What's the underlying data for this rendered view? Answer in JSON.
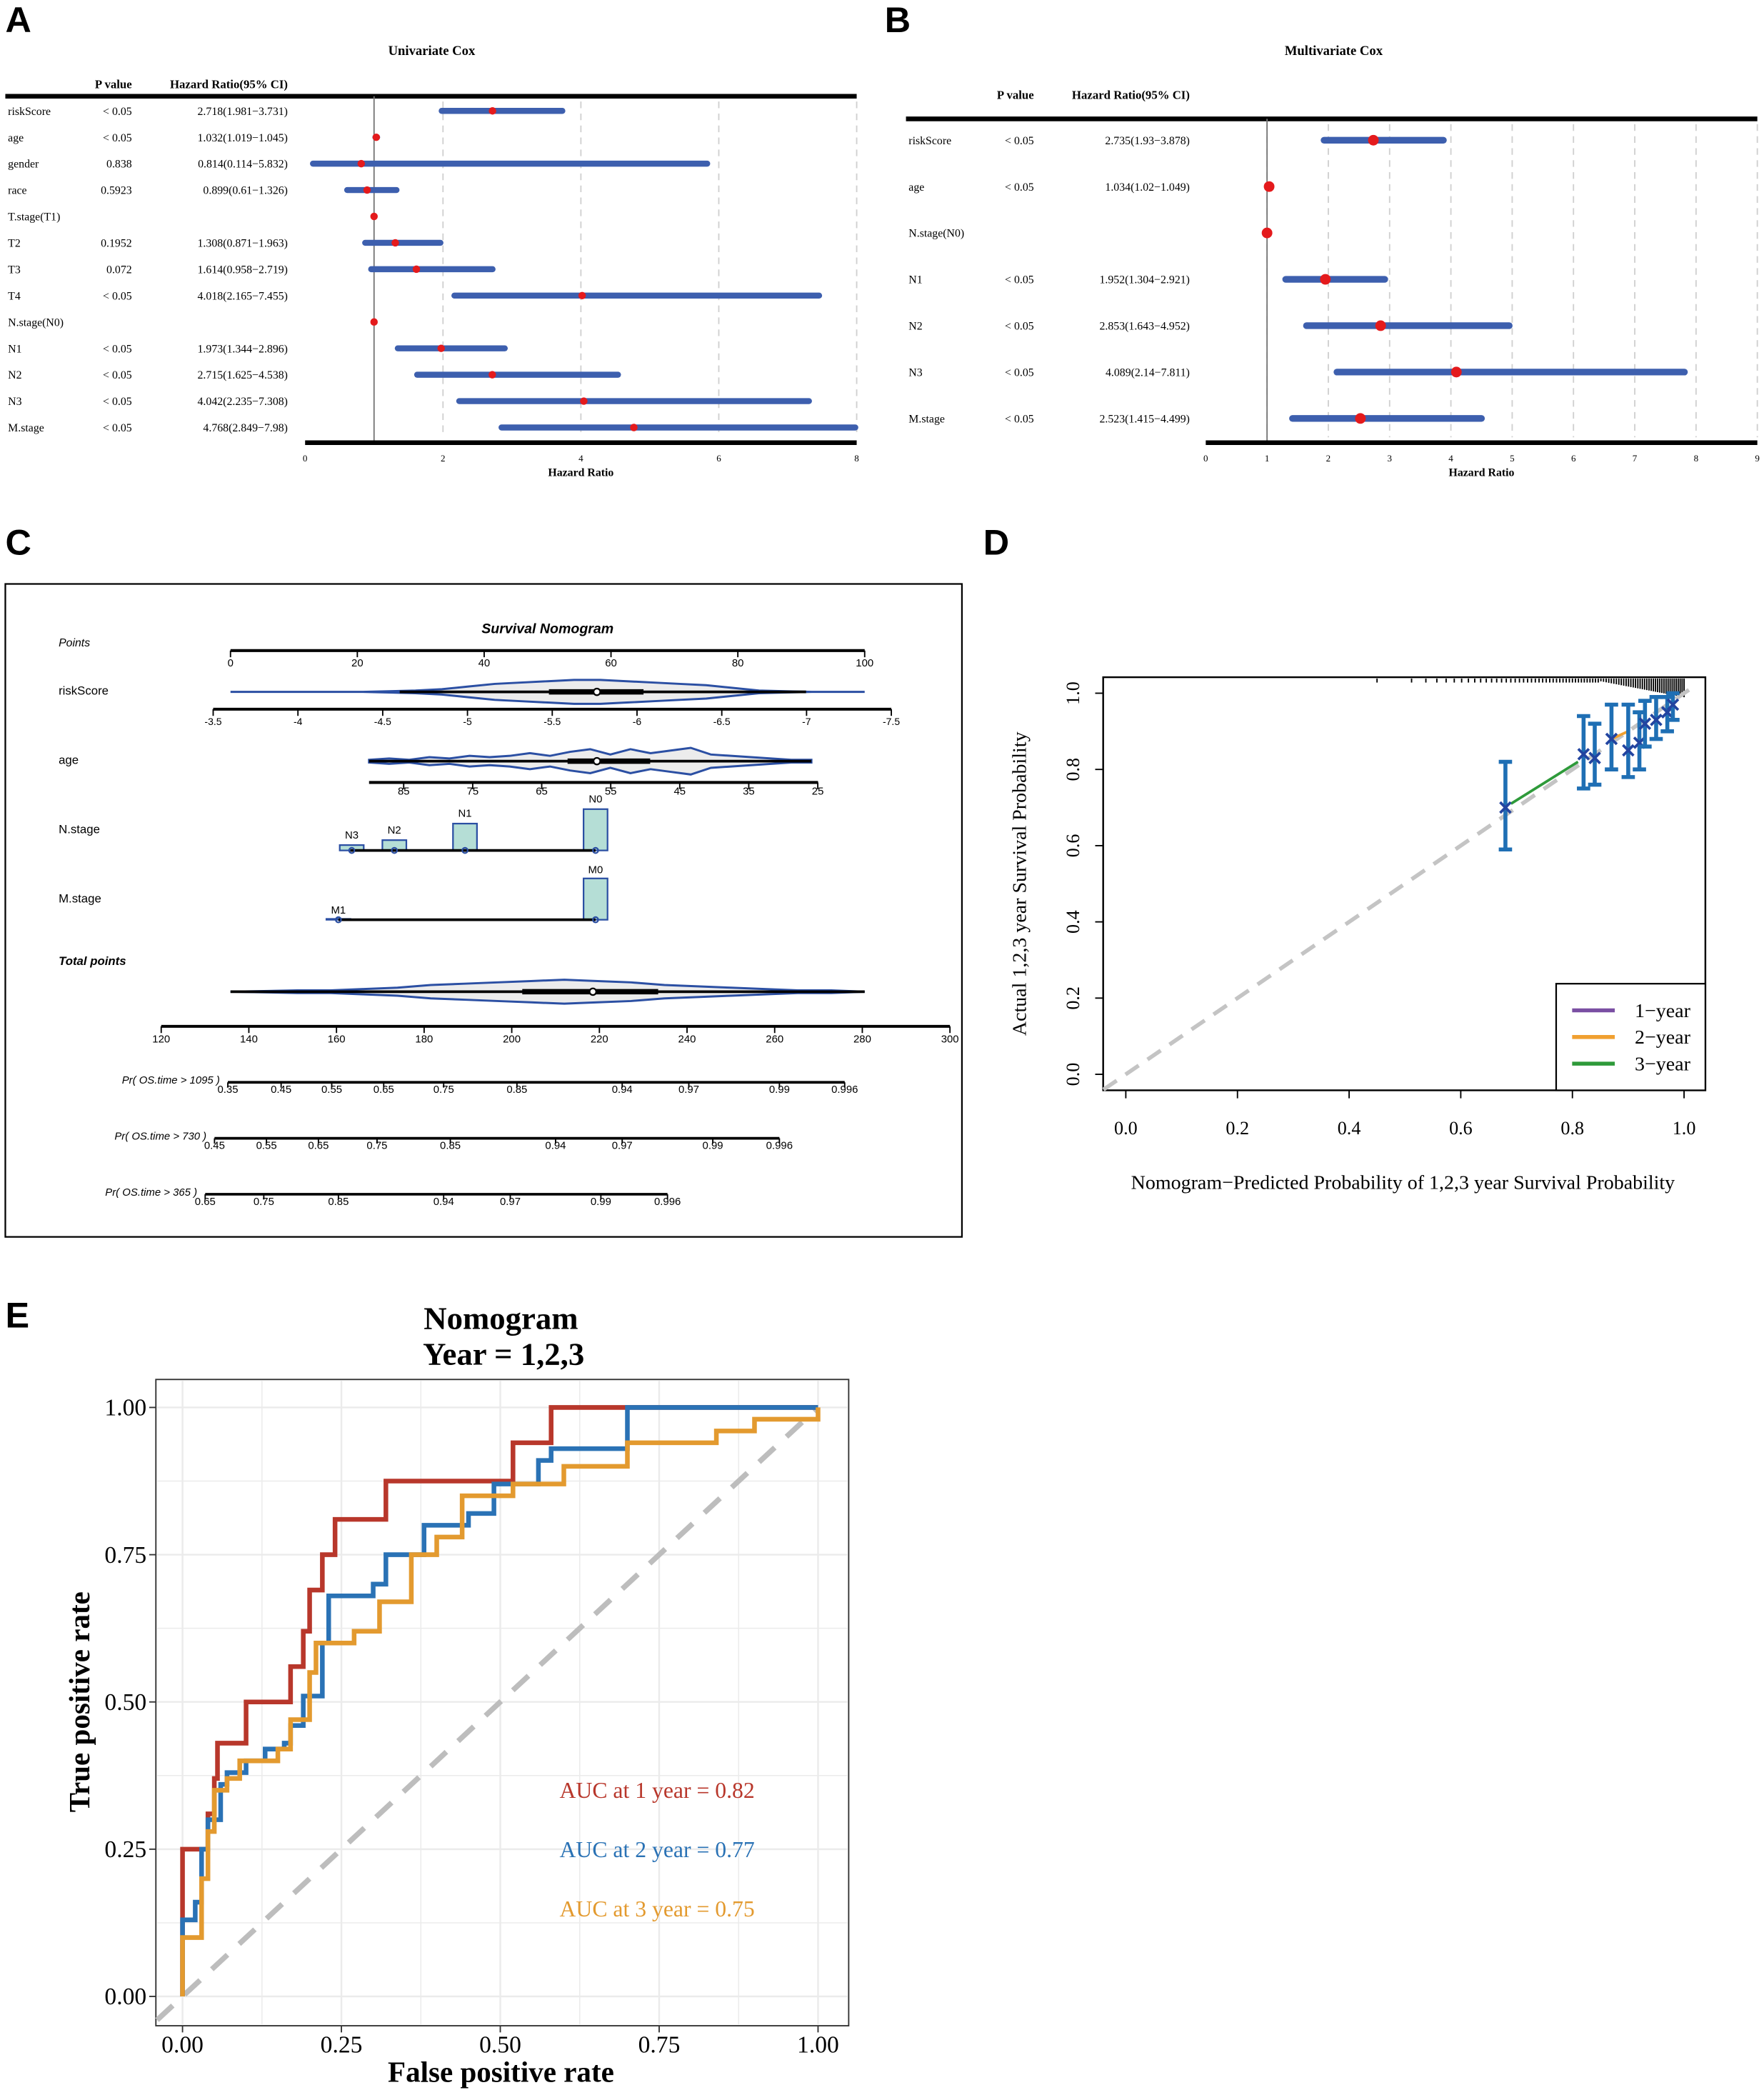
{
  "panel_labels": [
    "A",
    "B",
    "C",
    "D",
    "E"
  ],
  "chart_data": [
    {
      "type": "forest",
      "title": "Univariate Cox",
      "xlabel": "Hazard Ratio",
      "header": {
        "pvalue": "P value",
        "hr": "Hazard Ratio(95% CI)"
      },
      "xlim": [
        0,
        8
      ],
      "xticks": [
        0,
        2,
        4,
        6,
        8
      ],
      "ref": 1,
      "rows": [
        {
          "label": "riskScore",
          "p": "< 0.05",
          "hr_text": "2.718(1.981−3.731)",
          "hr": 2.718,
          "lo": 1.981,
          "hi": 3.731
        },
        {
          "label": "age",
          "p": "< 0.05",
          "hr_text": "1.032(1.019−1.045)",
          "hr": 1.032,
          "lo": 1.019,
          "hi": 1.045
        },
        {
          "label": "gender",
          "p": "0.838",
          "hr_text": "0.814(0.114−5.832)",
          "hr": 0.814,
          "lo": 0.114,
          "hi": 5.832
        },
        {
          "label": "race",
          "p": "0.5923",
          "hr_text": "0.899(0.61−1.326)",
          "hr": 0.899,
          "lo": 0.61,
          "hi": 1.326
        },
        {
          "label": "T.stage(T1)",
          "p": "",
          "hr_text": "",
          "hr": 1,
          "lo": null,
          "hi": null
        },
        {
          "label": "T2",
          "p": "0.1952",
          "hr_text": "1.308(0.871−1.963)",
          "hr": 1.308,
          "lo": 0.871,
          "hi": 1.963
        },
        {
          "label": "T3",
          "p": "0.072",
          "hr_text": "1.614(0.958−2.719)",
          "hr": 1.614,
          "lo": 0.958,
          "hi": 2.719
        },
        {
          "label": "T4",
          "p": "< 0.05",
          "hr_text": "4.018(2.165−7.455)",
          "hr": 4.018,
          "lo": 2.165,
          "hi": 7.455
        },
        {
          "label": "N.stage(N0)",
          "p": "",
          "hr_text": "",
          "hr": 1,
          "lo": null,
          "hi": null
        },
        {
          "label": "N1",
          "p": "< 0.05",
          "hr_text": "1.973(1.344−2.896)",
          "hr": 1.973,
          "lo": 1.344,
          "hi": 2.896
        },
        {
          "label": "N2",
          "p": "< 0.05",
          "hr_text": "2.715(1.625−4.538)",
          "hr": 2.715,
          "lo": 1.625,
          "hi": 4.538
        },
        {
          "label": "N3",
          "p": "< 0.05",
          "hr_text": "4.042(2.235−7.308)",
          "hr": 4.042,
          "lo": 2.235,
          "hi": 7.308
        },
        {
          "label": "M.stage",
          "p": "< 0.05",
          "hr_text": "4.768(2.849−7.98)",
          "hr": 4.768,
          "lo": 2.849,
          "hi": 7.98
        }
      ]
    },
    {
      "type": "forest",
      "title": "Multivariate Cox",
      "xlabel": "Hazard Ratio",
      "header": {
        "pvalue": "P value",
        "hr": "Hazard Ratio(95% CI)"
      },
      "xlim": [
        0,
        9
      ],
      "xticks": [
        0,
        1,
        2,
        3,
        4,
        5,
        6,
        7,
        8,
        9
      ],
      "ref": 1,
      "rows": [
        {
          "label": "riskScore",
          "p": "< 0.05",
          "hr_text": "2.735(1.93−3.878)",
          "hr": 2.735,
          "lo": 1.93,
          "hi": 3.878
        },
        {
          "label": "age",
          "p": "< 0.05",
          "hr_text": "1.034(1.02−1.049)",
          "hr": 1.034,
          "lo": 1.02,
          "hi": 1.049
        },
        {
          "label": "N.stage(N0)",
          "p": "",
          "hr_text": "",
          "hr": 1,
          "lo": null,
          "hi": null
        },
        {
          "label": "N1",
          "p": "< 0.05",
          "hr_text": "1.952(1.304−2.921)",
          "hr": 1.952,
          "lo": 1.304,
          "hi": 2.921
        },
        {
          "label": "N2",
          "p": "< 0.05",
          "hr_text": "2.853(1.643−4.952)",
          "hr": 2.853,
          "lo": 1.643,
          "hi": 4.952
        },
        {
          "label": "N3",
          "p": "< 0.05",
          "hr_text": "4.089(2.14−7.811)",
          "hr": 4.089,
          "lo": 2.14,
          "hi": 7.811
        },
        {
          "label": "M.stage",
          "p": "< 0.05",
          "hr_text": "2.523(1.415−4.499)",
          "hr": 2.523,
          "lo": 1.415,
          "hi": 4.499
        }
      ]
    },
    {
      "type": "nomogram",
      "title": "Survival Nomogram",
      "points": {
        "label": "Points",
        "ticks": [
          0,
          20,
          40,
          60,
          80,
          100
        ]
      },
      "riskScore": {
        "label": "riskScore",
        "ticks": [
          "-3.5",
          "-4",
          "-4.5",
          "-5",
          "-5.5",
          "-6",
          "-6.5",
          "-7",
          "-7.5"
        ]
      },
      "age": {
        "label": "age",
        "ticks": [
          "85",
          "75",
          "65",
          "55",
          "45",
          "35",
          "25"
        ]
      },
      "n_stage": {
        "label": "N.stage",
        "levels": [
          "N3",
          "N2",
          "N1",
          "N0"
        ],
        "freq": [
          0.13,
          0.25,
          0.65,
          1.0
        ]
      },
      "m_stage": {
        "label": "M.stage",
        "levels": [
          "M1",
          "M0"
        ],
        "freq": [
          0.02,
          1.0
        ]
      },
      "total": {
        "label": "Total points",
        "ticks": [
          120,
          140,
          160,
          180,
          200,
          220,
          240,
          260,
          280,
          300
        ]
      },
      "probs": [
        {
          "label": "Pr( OS.time > 1095 )",
          "ticks": [
            "0.35",
            "0.45",
            "0.55",
            "0.65",
            "0.75",
            "0.85",
            "0.94",
            "0.97",
            "0.99",
            "0.996"
          ]
        },
        {
          "label": "Pr( OS.time > 730 )",
          "ticks": [
            "0.45",
            "0.55",
            "0.65",
            "0.75",
            "0.85",
            "0.94",
            "0.97",
            "0.99",
            "0.996"
          ]
        },
        {
          "label": "Pr( OS.time > 365 )",
          "ticks": [
            "0.65",
            "0.75",
            "0.85",
            "0.94",
            "0.97",
            "0.99",
            "0.996"
          ]
        }
      ]
    },
    {
      "type": "scatter",
      "xlabel": "Nomogram−Predicted Probability of 1,2,3 year Survival Probability",
      "ylabel": "Actual 1,2,3 year Survival Probability",
      "xlim": [
        0,
        1
      ],
      "ylim": [
        0,
        1
      ],
      "ticks": [
        "0.0",
        "0.2",
        "0.4",
        "0.6",
        "0.8",
        "1.0"
      ],
      "legend": [
        {
          "name": "1−year",
          "color": "#7a4fa3"
        },
        {
          "name": "2−year",
          "color": "#f0a030"
        },
        {
          "name": "3−year",
          "color": "#2e9a3a"
        }
      ],
      "legend_position": "bottom-right",
      "points": [
        {
          "x": 0.68,
          "y": 0.7,
          "lo": 0.59,
          "hi": 0.82
        },
        {
          "x": 0.82,
          "y": 0.84,
          "lo": 0.75,
          "hi": 0.94
        },
        {
          "x": 0.84,
          "y": 0.83,
          "lo": 0.76,
          "hi": 0.92
        },
        {
          "x": 0.87,
          "y": 0.88,
          "lo": 0.8,
          "hi": 0.97
        },
        {
          "x": 0.9,
          "y": 0.85,
          "lo": 0.78,
          "hi": 0.97
        },
        {
          "x": 0.92,
          "y": 0.87,
          "lo": 0.8,
          "hi": 0.95
        },
        {
          "x": 0.93,
          "y": 0.92,
          "lo": 0.86,
          "hi": 0.98
        },
        {
          "x": 0.95,
          "y": 0.93,
          "lo": 0.88,
          "hi": 0.99
        },
        {
          "x": 0.97,
          "y": 0.95,
          "lo": 0.9,
          "hi": 0.99
        },
        {
          "x": 0.98,
          "y": 0.97,
          "lo": 0.93,
          "hi": 1.0
        }
      ]
    },
    {
      "type": "line",
      "title": "Nomogram",
      "subtitle": "Year = 1,2,3",
      "xlabel": "False positive rate",
      "ylabel": "True positive rate",
      "xlim": [
        0,
        1
      ],
      "ylim": [
        0,
        1
      ],
      "ticks": [
        "0.00",
        "0.25",
        "0.50",
        "0.75",
        "1.00"
      ],
      "grid": true,
      "series": [
        {
          "name": "1 year",
          "auc_label": "AUC at 1 year = 0.82",
          "auc": 0.82,
          "color": "#b8372b",
          "points": [
            [
              0,
              0
            ],
            [
              0,
              0.25
            ],
            [
              0.04,
              0.25
            ],
            [
              0.04,
              0.31
            ],
            [
              0.05,
              0.31
            ],
            [
              0.05,
              0.37
            ],
            [
              0.055,
              0.43
            ],
            [
              0.1,
              0.43
            ],
            [
              0.1,
              0.5
            ],
            [
              0.17,
              0.5
            ],
            [
              0.17,
              0.56
            ],
            [
              0.19,
              0.56
            ],
            [
              0.19,
              0.62
            ],
            [
              0.2,
              0.69
            ],
            [
              0.22,
              0.69
            ],
            [
              0.22,
              0.75
            ],
            [
              0.24,
              0.75
            ],
            [
              0.24,
              0.81
            ],
            [
              0.32,
              0.81
            ],
            [
              0.32,
              0.875
            ],
            [
              0.52,
              0.875
            ],
            [
              0.52,
              0.94
            ],
            [
              0.58,
              0.94
            ],
            [
              0.58,
              1
            ],
            [
              1,
              1
            ]
          ]
        },
        {
          "name": "2 year",
          "auc_label": "AUC at 2 year = 0.77",
          "auc": 0.77,
          "color": "#2a72b5",
          "points": [
            [
              0,
              0
            ],
            [
              0,
              0.13
            ],
            [
              0.02,
              0.13
            ],
            [
              0.02,
              0.16
            ],
            [
              0.03,
              0.16
            ],
            [
              0.03,
              0.25
            ],
            [
              0.04,
              0.3
            ],
            [
              0.06,
              0.36
            ],
            [
              0.07,
              0.38
            ],
            [
              0.1,
              0.4
            ],
            [
              0.13,
              0.42
            ],
            [
              0.16,
              0.43
            ],
            [
              0.17,
              0.46
            ],
            [
              0.19,
              0.47
            ],
            [
              0.19,
              0.51
            ],
            [
              0.22,
              0.51
            ],
            [
              0.22,
              0.6
            ],
            [
              0.23,
              0.68
            ],
            [
              0.3,
              0.7
            ],
            [
              0.32,
              0.75
            ],
            [
              0.38,
              0.75
            ],
            [
              0.38,
              0.8
            ],
            [
              0.45,
              0.82
            ],
            [
              0.49,
              0.87
            ],
            [
              0.56,
              0.87
            ],
            [
              0.56,
              0.91
            ],
            [
              0.58,
              0.93
            ],
            [
              0.7,
              0.93
            ],
            [
              0.7,
              1
            ],
            [
              1,
              1
            ]
          ]
        },
        {
          "name": "3 year",
          "auc_label": "AUC at 3 year = 0.75",
          "auc": 0.75,
          "color": "#e39a2f",
          "points": [
            [
              0,
              0
            ],
            [
              0,
              0.1
            ],
            [
              0.02,
              0.1
            ],
            [
              0.03,
              0.2
            ],
            [
              0.04,
              0.28
            ],
            [
              0.05,
              0.35
            ],
            [
              0.07,
              0.37
            ],
            [
              0.09,
              0.4
            ],
            [
              0.15,
              0.42
            ],
            [
              0.17,
              0.47
            ],
            [
              0.2,
              0.55
            ],
            [
              0.21,
              0.6
            ],
            [
              0.27,
              0.62
            ],
            [
              0.31,
              0.67
            ],
            [
              0.36,
              0.75
            ],
            [
              0.4,
              0.78
            ],
            [
              0.44,
              0.85
            ],
            [
              0.52,
              0.87
            ],
            [
              0.6,
              0.9
            ],
            [
              0.7,
              0.94
            ],
            [
              0.84,
              0.94
            ],
            [
              0.84,
              0.96
            ],
            [
              0.9,
              0.98
            ],
            [
              1,
              1
            ]
          ]
        }
      ]
    }
  ],
  "colors": {
    "bar": "#3d5fae",
    "dot": "#e41a1c",
    "violin": "#2b4fa3",
    "violin_fill": "#ececec",
    "hist": "#b5ded6",
    "diag": "#c4c4c4",
    "calib": "#1f6fb4"
  }
}
